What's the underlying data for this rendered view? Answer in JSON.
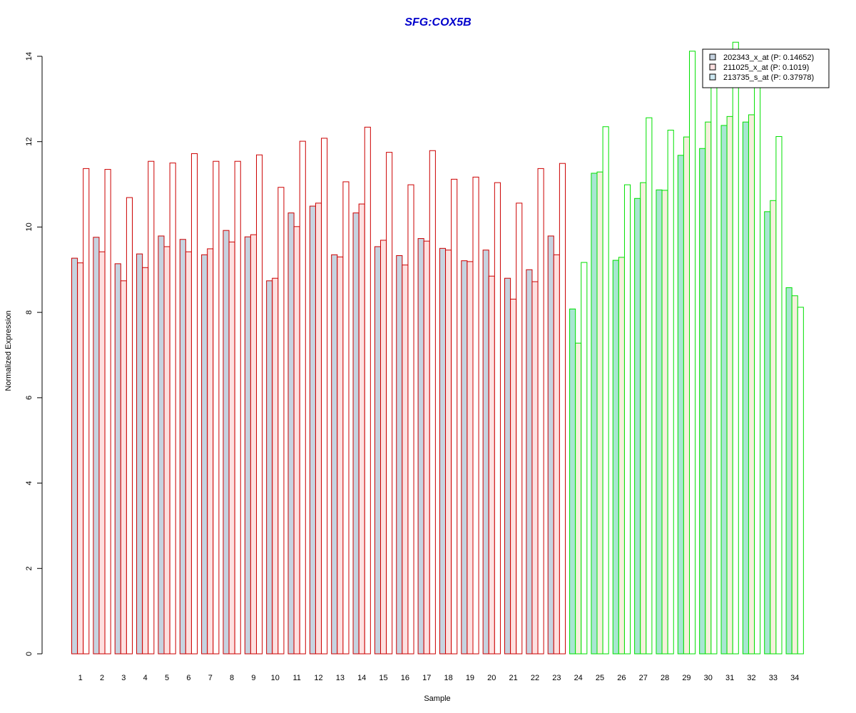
{
  "chart_data": {
    "type": "bar",
    "title": "SFG:COX5B",
    "xlabel": "Sample",
    "ylabel": "Normalized Expression",
    "ylim": [
      0,
      14
    ],
    "yticks": [
      0,
      2,
      4,
      6,
      8,
      10,
      12,
      14
    ],
    "grid": false,
    "legend_position": "top-right",
    "categories": [
      "1",
      "2",
      "3",
      "4",
      "5",
      "6",
      "7",
      "8",
      "9",
      "10",
      "11",
      "12",
      "13",
      "14",
      "15",
      "16",
      "17",
      "18",
      "19",
      "20",
      "21",
      "22",
      "23",
      "24",
      "25",
      "26",
      "27",
      "28",
      "29",
      "30",
      "31",
      "32",
      "33",
      "34"
    ],
    "group_split_after": 23,
    "group_colors": [
      {
        "border": "#cc0000",
        "fills": [
          "#c6d3e0",
          "#fde0e0",
          "#ffffff"
        ]
      },
      {
        "border": "#00e000",
        "fills": [
          "#a8e6d2",
          "#f5f0dc",
          "#ffffff"
        ]
      }
    ],
    "legend_swatch_fills": [
      "#c6d3e0",
      "#fde0e0",
      "#cde8f2"
    ],
    "series": [
      {
        "name": "202343_x_at (P: 0.14652)",
        "values": [
          9.27,
          9.76,
          9.14,
          9.37,
          9.79,
          9.71,
          9.35,
          9.92,
          9.77,
          8.74,
          10.33,
          10.49,
          9.35,
          10.33,
          9.54,
          9.33,
          9.73,
          9.5,
          9.21,
          9.46,
          8.8,
          9.0,
          9.79,
          8.08,
          11.26,
          9.22,
          10.67,
          10.87,
          11.68,
          11.84,
          12.38,
          12.46,
          10.36,
          8.58
        ]
      },
      {
        "name": "211025_x_at (P: 0.1019)",
        "values": [
          9.16,
          9.42,
          8.74,
          9.05,
          9.54,
          9.42,
          9.49,
          9.65,
          9.82,
          8.8,
          10.01,
          10.56,
          9.3,
          10.54,
          9.69,
          9.11,
          9.67,
          9.46,
          9.19,
          8.85,
          8.31,
          8.72,
          9.35,
          7.28,
          11.29,
          9.29,
          11.04,
          10.86,
          12.11,
          12.46,
          12.59,
          12.63,
          10.62,
          8.39
        ]
      },
      {
        "name": "213735_s_at (P: 0.37978)",
        "values": [
          11.37,
          11.35,
          10.69,
          11.54,
          11.5,
          11.72,
          11.54,
          11.54,
          11.69,
          10.93,
          12.01,
          12.08,
          11.06,
          12.34,
          11.75,
          10.99,
          11.79,
          11.12,
          11.17,
          11.04,
          10.56,
          11.37,
          11.49,
          9.17,
          12.35,
          10.99,
          12.56,
          12.27,
          14.12,
          13.5,
          14.33,
          13.4,
          12.12,
          8.12
        ]
      }
    ]
  }
}
